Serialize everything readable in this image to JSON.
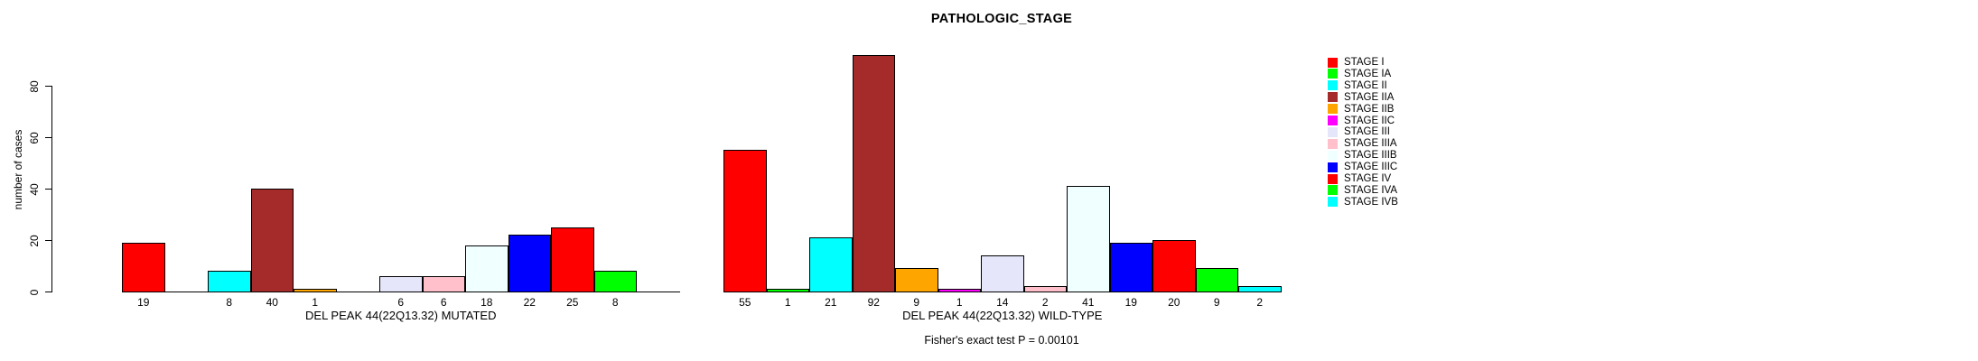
{
  "title": "PATHOLOGIC_STAGE",
  "subtitle": "Fisher's exact test P = 0.00101",
  "y_axis": {
    "label": "number of cases",
    "ticks": [
      0,
      20,
      40,
      60,
      80
    ]
  },
  "chart_data": {
    "type": "bar",
    "title": "PATHOLOGIC_STAGE",
    "xlabel": "",
    "ylabel": "number of cases",
    "ylim": [
      0,
      96
    ],
    "yticks": [
      0,
      20,
      40,
      60,
      80
    ],
    "grid": false,
    "legend_position": "right",
    "categories": [
      "STAGE I",
      "STAGE IA",
      "STAGE II",
      "STAGE IIA",
      "STAGE IIB",
      "STAGE IIC",
      "STAGE III",
      "STAGE IIIA",
      "STAGE IIIB",
      "STAGE IIIC",
      "STAGE IV",
      "STAGE IVA",
      "STAGE IVB"
    ],
    "palette": [
      "#FF0000",
      "#00FF00",
      "#00FFFF",
      "#A52A2A",
      "#FFA500",
      "#FF00FF",
      "#E6E6FA",
      "#FFC0CB",
      "#F0FFFF",
      "#0000FF",
      "#FF0000",
      "#00FF00",
      "#00FFFF"
    ],
    "series": [
      {
        "name": "DEL PEAK 44(22Q13.32) MUTATED",
        "values": [
          19,
          0,
          8,
          40,
          1,
          0,
          6,
          6,
          18,
          22,
          25,
          8,
          0
        ]
      },
      {
        "name": "DEL PEAK 44(22Q13.32) WILD-TYPE",
        "values": [
          55,
          1,
          21,
          92,
          9,
          1,
          14,
          2,
          41,
          19,
          20,
          9,
          2
        ]
      }
    ],
    "bar_value_labels_shown": true,
    "zero_value_labels_hidden": true,
    "annotation": "Fisher's exact test P = 0.00101"
  },
  "legend": {
    "items": [
      {
        "label": "STAGE I",
        "color": "#FF0000"
      },
      {
        "label": "STAGE IA",
        "color": "#00FF00"
      },
      {
        "label": "STAGE II",
        "color": "#00FFFF"
      },
      {
        "label": "STAGE IIA",
        "color": "#A52A2A"
      },
      {
        "label": "STAGE IIB",
        "color": "#FFA500"
      },
      {
        "label": "STAGE IIC",
        "color": "#FF00FF"
      },
      {
        "label": "STAGE III",
        "color": "#E6E6FA"
      },
      {
        "label": "STAGE IIIA",
        "color": "#FFC0CB"
      },
      {
        "label": "STAGE IIIB",
        "color": "#F0FFFF"
      },
      {
        "label": "STAGE IIIC",
        "color": "#0000FF"
      },
      {
        "label": "STAGE IV",
        "color": "#FF0000"
      },
      {
        "label": "STAGE IVA",
        "color": "#00FF00"
      },
      {
        "label": "STAGE IVB",
        "color": "#00FFFF"
      }
    ]
  }
}
